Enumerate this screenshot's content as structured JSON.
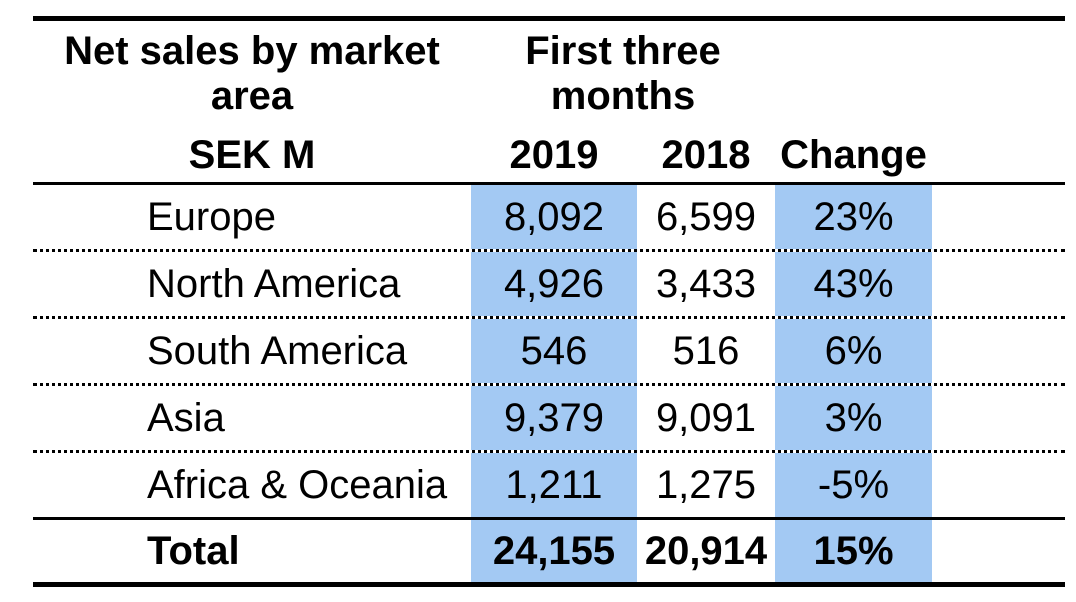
{
  "colors": {
    "highlight": "#A3C9F3",
    "text": "#000000",
    "background": "#ffffff"
  },
  "chart_data": {
    "type": "table",
    "title": "Net sales by market area",
    "subtitle": "First three months",
    "unit": "SEK M",
    "columns": [
      "2019",
      "2018",
      "Change"
    ],
    "highlighted_columns": [
      "2019",
      "Change"
    ],
    "rows": [
      {
        "label": "Europe",
        "y2019": "8,092",
        "y2018": "6,599",
        "change": "23%"
      },
      {
        "label": "North America",
        "y2019": "4,926",
        "y2018": "3,433",
        "change": "43%"
      },
      {
        "label": "South America",
        "y2019": "546",
        "y2018": "516",
        "change": "6%"
      },
      {
        "label": "Asia",
        "y2019": "9,379",
        "y2018": "9,091",
        "change": "3%"
      },
      {
        "label": "Africa & Oceania",
        "y2019": "1,211",
        "y2018": "1,275",
        "change": "-5%"
      }
    ],
    "total": {
      "label": "Total",
      "y2019": "24,155",
      "y2018": "20,914",
      "change": "15%"
    }
  }
}
